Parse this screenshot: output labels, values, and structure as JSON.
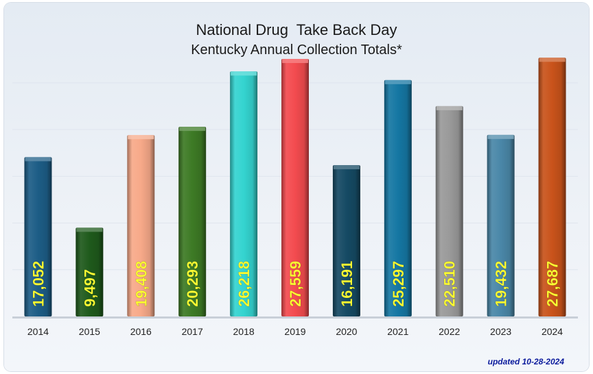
{
  "chart_data": {
    "type": "bar",
    "title": "National Drug  Take Back Day",
    "subtitle": "Kentucky Annual Collection Totals*",
    "categories": [
      "2014",
      "2015",
      "2016",
      "2017",
      "2018",
      "2019",
      "2020",
      "2021",
      "2022",
      "2023",
      "2024"
    ],
    "values": [
      17052,
      9497,
      19408,
      20293,
      26218,
      27559,
      16191,
      25297,
      22510,
      19432,
      27687
    ],
    "value_labels": [
      "17,052",
      "9,497",
      "19,408",
      "20,293",
      "26,218",
      "27,559",
      "16,191",
      "25,297",
      "22,510",
      "19,432",
      "27,687"
    ],
    "colors": [
      "#1d5d86",
      "#1f5a1c",
      "#f7a989",
      "#3d7a25",
      "#34d4d0",
      "#f34b4f",
      "#154a64",
      "#1577a3",
      "#9a9a9a",
      "#4a87a8",
      "#c9531b"
    ],
    "label_color": "#ffff33",
    "ylim": [
      0,
      28000
    ],
    "grid": true,
    "legend": "none"
  },
  "footnote": "updated 10-28-2024"
}
